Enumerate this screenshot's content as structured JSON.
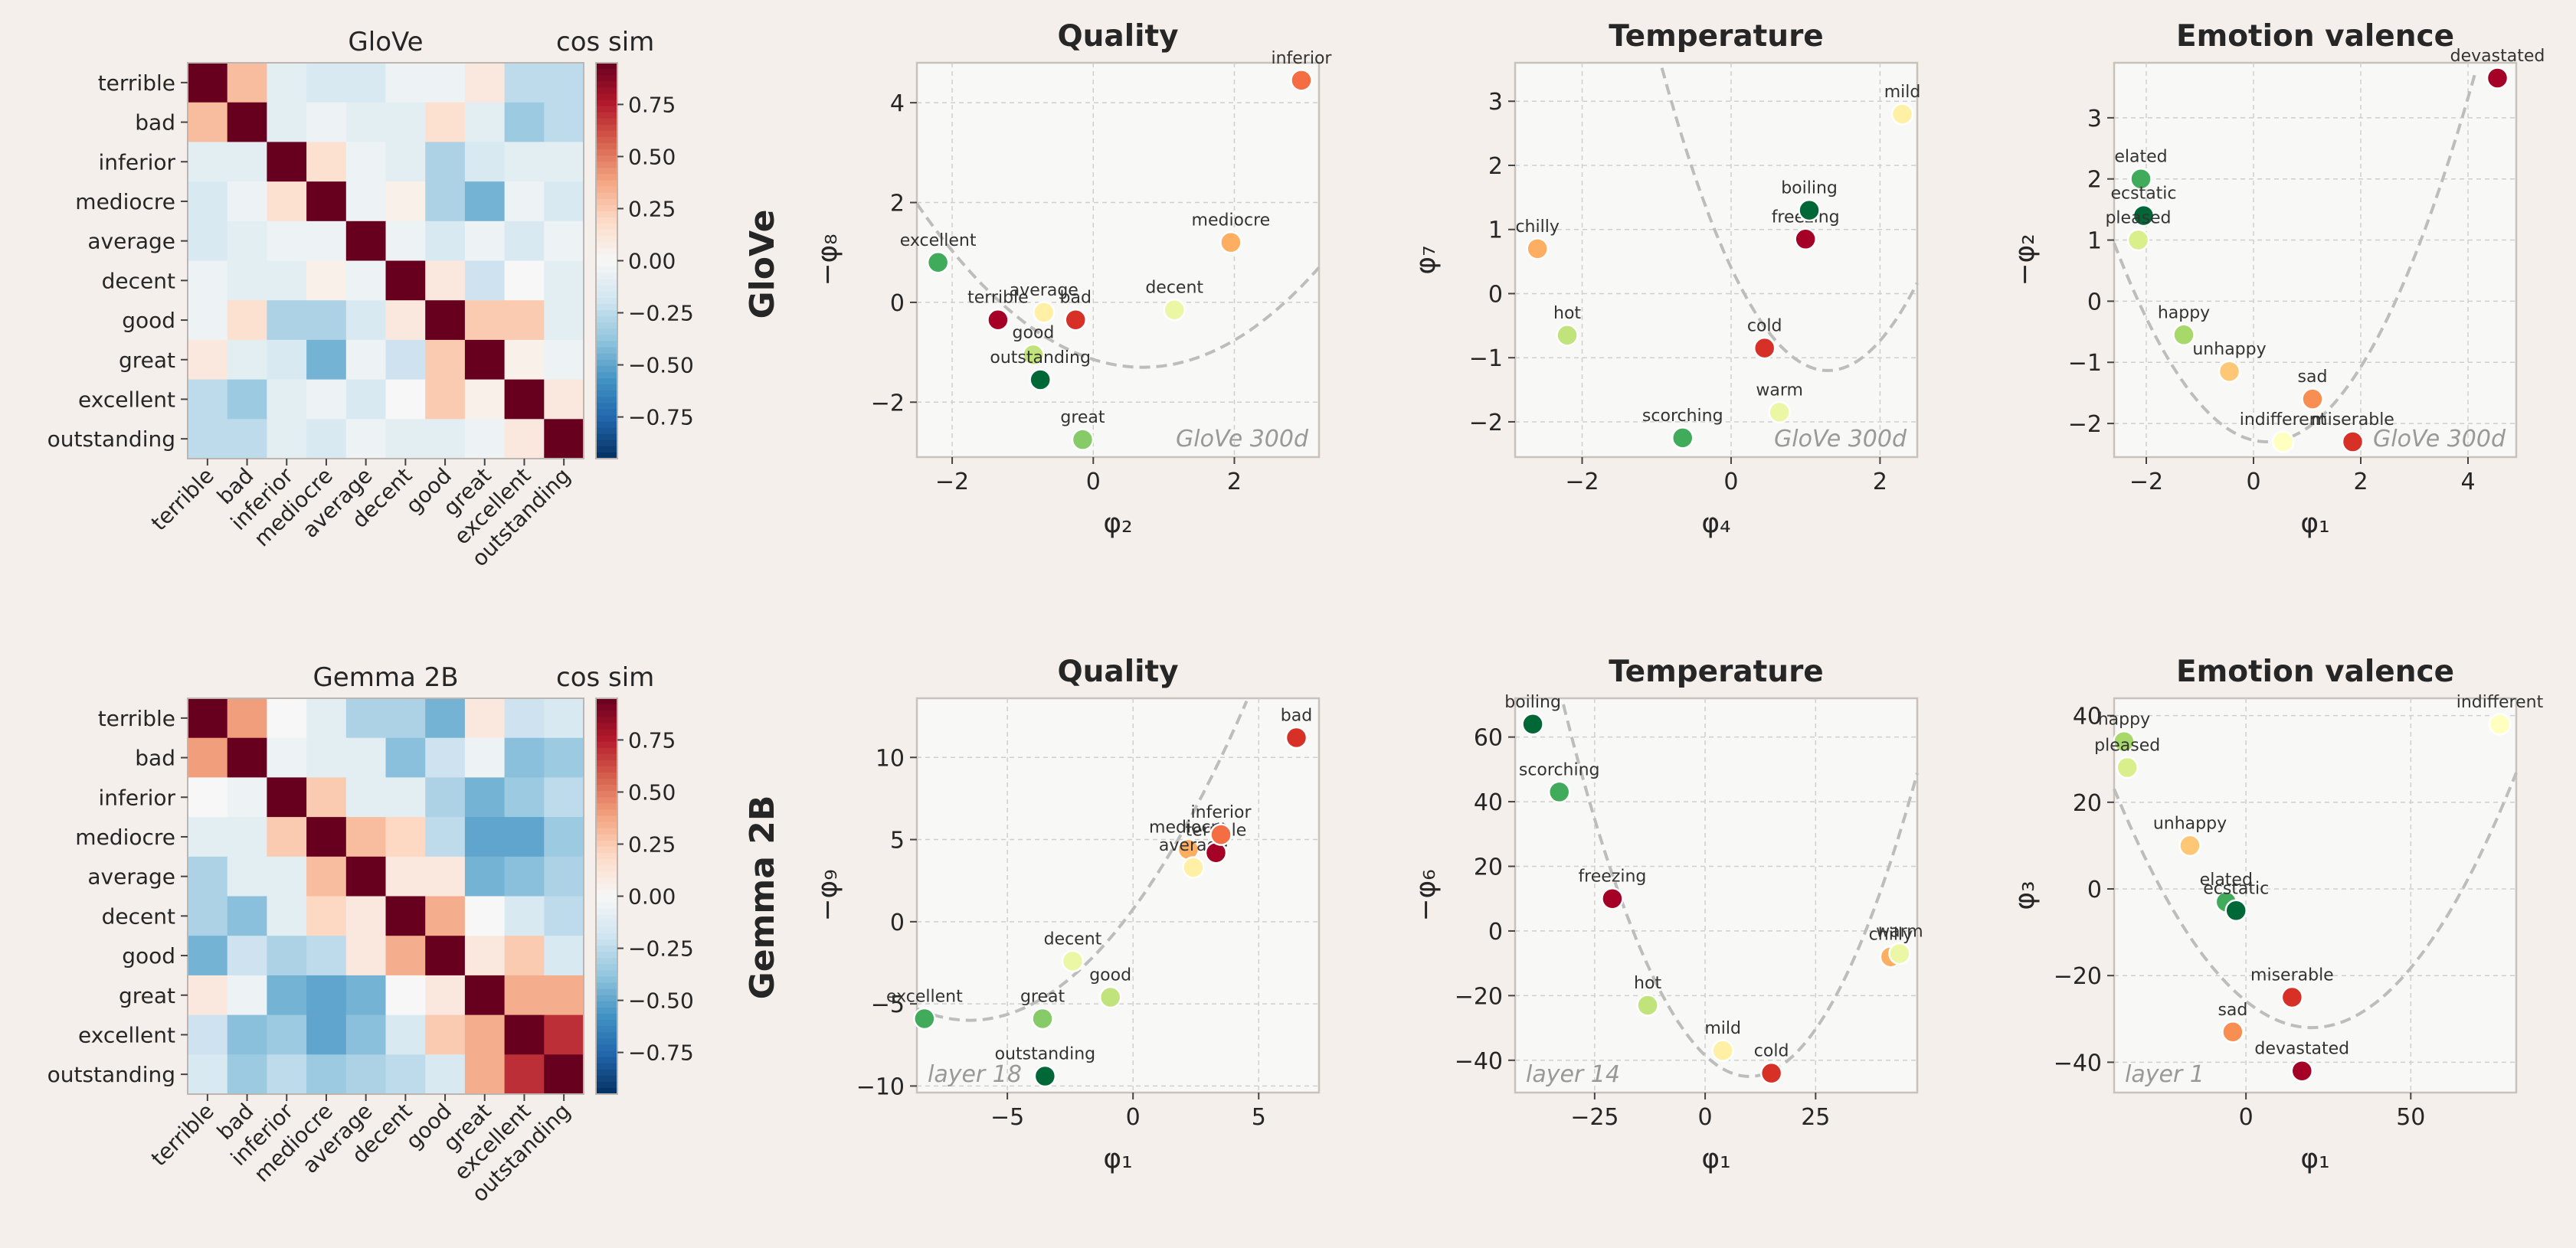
{
  "colorbar": {
    "title": "cos sim",
    "ticks": [
      0.75,
      0.5,
      0.25,
      0.0,
      -0.25,
      -0.5,
      -0.75
    ],
    "tick_labels": [
      "0.75",
      "0.50",
      "0.25",
      "0.00",
      "−0.25",
      "−0.50",
      "−0.75"
    ],
    "range": [
      -0.95,
      0.95
    ]
  },
  "colormaps": {
    "heatmap": "RdBu_r",
    "points": "RdYlGn"
  },
  "rows": [
    {
      "label": "GloVe"
    },
    {
      "label": "Gemma 2B"
    }
  ],
  "chart_data": [
    {
      "type": "heatmap",
      "title": "GloVe",
      "row": 0,
      "labels": [
        "terrible",
        "bad",
        "inferior",
        "mediocre",
        "average",
        "decent",
        "good",
        "great",
        "excellent",
        "outstanding"
      ],
      "matrix": [
        [
          1.0,
          0.3,
          -0.1,
          -0.15,
          -0.15,
          -0.05,
          -0.05,
          0.1,
          -0.25,
          -0.25
        ],
        [
          0.3,
          1.0,
          -0.1,
          -0.05,
          -0.1,
          -0.1,
          0.15,
          -0.1,
          -0.35,
          -0.25
        ],
        [
          -0.1,
          -0.1,
          1.0,
          0.15,
          -0.05,
          -0.1,
          -0.3,
          -0.15,
          -0.1,
          -0.1
        ],
        [
          -0.15,
          -0.05,
          0.15,
          1.0,
          -0.05,
          0.05,
          -0.3,
          -0.45,
          -0.05,
          -0.15
        ],
        [
          -0.15,
          -0.1,
          -0.05,
          -0.05,
          1.0,
          -0.05,
          -0.15,
          -0.05,
          -0.15,
          -0.05
        ],
        [
          -0.05,
          -0.1,
          -0.1,
          0.05,
          -0.05,
          1.0,
          0.1,
          -0.2,
          0.0,
          -0.1
        ],
        [
          -0.05,
          0.15,
          -0.3,
          -0.3,
          -0.15,
          0.1,
          1.0,
          0.25,
          0.25,
          -0.1
        ],
        [
          0.1,
          -0.1,
          -0.15,
          -0.45,
          -0.05,
          -0.2,
          0.25,
          1.0,
          0.05,
          -0.05
        ],
        [
          -0.25,
          -0.35,
          -0.1,
          -0.05,
          -0.15,
          0.0,
          0.25,
          0.05,
          1.0,
          0.1
        ],
        [
          -0.25,
          -0.25,
          -0.1,
          -0.15,
          -0.05,
          -0.1,
          -0.1,
          -0.05,
          0.1,
          1.0
        ]
      ]
    },
    {
      "type": "scatter",
      "title": "Quality",
      "row": 0,
      "xlabel": "φ₂",
      "ylabel": "−φ₈",
      "xlim": [
        -2.5,
        3.2
      ],
      "ylim": [
        -3.1,
        4.8
      ],
      "xticks": [
        -2,
        0,
        2
      ],
      "yticks": [
        -2,
        0,
        2,
        4
      ],
      "annotation": "GloVe 300d",
      "curve": [
        0.32,
        0.7,
        -1.3
      ],
      "points": [
        {
          "label": "excellent",
          "x": -2.2,
          "y": 0.8,
          "c": 0.85
        },
        {
          "label": "terrible",
          "x": -1.35,
          "y": -0.35,
          "c": 0.0
        },
        {
          "label": "average",
          "x": -0.7,
          "y": -0.2,
          "c": 0.45
        },
        {
          "label": "bad",
          "x": -0.25,
          "y": -0.35,
          "c": 0.1
        },
        {
          "label": "good",
          "x": -0.85,
          "y": -1.05,
          "c": 0.65
        },
        {
          "label": "outstanding",
          "x": -0.75,
          "y": -1.55,
          "c": 1.0
        },
        {
          "label": "great",
          "x": -0.15,
          "y": -2.75,
          "c": 0.75
        },
        {
          "label": "decent",
          "x": 1.15,
          "y": -0.15,
          "c": 0.55
        },
        {
          "label": "mediocre",
          "x": 1.95,
          "y": 1.2,
          "c": 0.3
        },
        {
          "label": "inferior",
          "x": 2.95,
          "y": 4.45,
          "c": 0.2
        }
      ]
    },
    {
      "type": "scatter",
      "title": "Temperature",
      "row": 0,
      "xlabel": "φ₄",
      "ylabel": "φ₇",
      "xlim": [
        -2.9,
        2.5
      ],
      "ylim": [
        -2.55,
        3.6
      ],
      "xticks": [
        -2,
        0,
        2
      ],
      "yticks": [
        -2,
        -1,
        0,
        1,
        2,
        3
      ],
      "annotation": "GloVe 300d",
      "curve": [
        0.95,
        1.3,
        -1.2
      ],
      "points": [
        {
          "label": "chilly",
          "x": -2.6,
          "y": 0.7,
          "c": 0.3
        },
        {
          "label": "hot",
          "x": -2.2,
          "y": -0.65,
          "c": 0.65
        },
        {
          "label": "scorching",
          "x": -0.65,
          "y": -2.25,
          "c": 0.85
        },
        {
          "label": "cold",
          "x": 0.45,
          "y": -0.85,
          "c": 0.1
        },
        {
          "label": "warm",
          "x": 0.65,
          "y": -1.85,
          "c": 0.55
        },
        {
          "label": "freezing",
          "x": 1.0,
          "y": 0.85,
          "c": 0.0
        },
        {
          "label": "boiling",
          "x": 1.05,
          "y": 1.3,
          "c": 1.0
        },
        {
          "label": "mild",
          "x": 2.3,
          "y": 2.8,
          "c": 0.45
        }
      ]
    },
    {
      "type": "scatter",
      "title": "Emotion valence",
      "row": 0,
      "xlabel": "φ₁",
      "ylabel": "−φ₂",
      "xlim": [
        -2.6,
        4.9
      ],
      "ylim": [
        -2.55,
        3.9
      ],
      "xticks": [
        -2,
        0,
        2,
        4
      ],
      "yticks": [
        -2,
        -1,
        0,
        1,
        2,
        3
      ],
      "annotation": "GloVe 300d",
      "curve": [
        0.4,
        0.25,
        -2.3
      ],
      "points": [
        {
          "label": "elated",
          "x": -2.1,
          "y": 2.0,
          "c": 0.85
        },
        {
          "label": "ecstatic",
          "x": -2.05,
          "y": 1.4,
          "c": 1.0
        },
        {
          "label": "pleased",
          "x": -2.15,
          "y": 1.0,
          "c": 0.6
        },
        {
          "label": "happy",
          "x": -1.3,
          "y": -0.55,
          "c": 0.7
        },
        {
          "label": "unhappy",
          "x": -0.45,
          "y": -1.15,
          "c": 0.35
        },
        {
          "label": "sad",
          "x": 1.1,
          "y": -1.6,
          "c": 0.25
        },
        {
          "label": "indifferent",
          "x": 0.55,
          "y": -2.3,
          "c": 0.5
        },
        {
          "label": "miserable",
          "x": 1.85,
          "y": -2.3,
          "c": 0.1
        },
        {
          "label": "devastated",
          "x": 4.55,
          "y": 3.65,
          "c": 0.0
        }
      ]
    },
    {
      "type": "heatmap",
      "title": "Gemma 2B",
      "row": 1,
      "labels": [
        "terrible",
        "bad",
        "inferior",
        "mediocre",
        "average",
        "decent",
        "good",
        "great",
        "excellent",
        "outstanding"
      ],
      "matrix": [
        [
          1.0,
          0.4,
          0.0,
          -0.1,
          -0.3,
          -0.3,
          -0.45,
          0.1,
          -0.2,
          -0.15
        ],
        [
          0.4,
          1.0,
          -0.05,
          -0.1,
          -0.1,
          -0.4,
          -0.2,
          -0.05,
          -0.4,
          -0.35
        ],
        [
          0.0,
          -0.05,
          1.0,
          0.25,
          -0.1,
          -0.1,
          -0.3,
          -0.45,
          -0.35,
          -0.25
        ],
        [
          -0.1,
          -0.1,
          0.25,
          1.0,
          0.3,
          0.2,
          -0.25,
          -0.5,
          -0.5,
          -0.35
        ],
        [
          -0.3,
          -0.1,
          -0.1,
          0.3,
          1.0,
          0.1,
          0.1,
          -0.45,
          -0.4,
          -0.3
        ],
        [
          -0.3,
          -0.4,
          -0.1,
          0.2,
          0.1,
          1.0,
          0.35,
          0.0,
          -0.15,
          -0.25
        ],
        [
          -0.45,
          -0.2,
          -0.3,
          -0.25,
          0.1,
          0.35,
          1.0,
          0.1,
          0.25,
          -0.15
        ],
        [
          0.1,
          -0.05,
          -0.45,
          -0.5,
          -0.45,
          0.0,
          0.1,
          1.0,
          0.35,
          0.35
        ],
        [
          -0.2,
          -0.4,
          -0.35,
          -0.5,
          -0.4,
          -0.15,
          0.25,
          0.35,
          1.0,
          0.7
        ],
        [
          -0.15,
          -0.35,
          -0.25,
          -0.35,
          -0.3,
          -0.25,
          -0.15,
          0.35,
          0.7,
          1.0
        ]
      ]
    },
    {
      "type": "scatter",
      "title": "Quality",
      "row": 1,
      "xlabel": "φ₁",
      "ylabel": "−φ₉",
      "xlim": [
        -8.6,
        7.4
      ],
      "ylim": [
        -10.4,
        13.6
      ],
      "xticks": [
        -5,
        0,
        5
      ],
      "yticks": [
        -10,
        -5,
        0,
        5,
        10
      ],
      "annotation": "layer 18",
      "curve": [
        0.16,
        -6.5,
        -6.0
      ],
      "points": [
        {
          "label": "excellent",
          "x": -8.3,
          "y": -5.9,
          "c": 0.85
        },
        {
          "label": "great",
          "x": -3.6,
          "y": -5.9,
          "c": 0.75
        },
        {
          "label": "outstanding",
          "x": -3.5,
          "y": -9.4,
          "c": 1.0
        },
        {
          "label": "decent",
          "x": -2.4,
          "y": -2.4,
          "c": 0.55
        },
        {
          "label": "good",
          "x": -0.9,
          "y": -4.6,
          "c": 0.65
        },
        {
          "label": "mediocre",
          "x": 2.2,
          "y": 4.4,
          "c": 0.3
        },
        {
          "label": "average",
          "x": 2.4,
          "y": 3.3,
          "c": 0.45
        },
        {
          "label": "terrible",
          "x": 3.3,
          "y": 4.2,
          "c": 0.0
        },
        {
          "label": "inferior",
          "x": 3.5,
          "y": 5.3,
          "c": 0.2
        },
        {
          "label": "bad",
          "x": 6.5,
          "y": 11.2,
          "c": 0.1
        }
      ]
    },
    {
      "type": "scatter",
      "title": "Temperature",
      "row": 1,
      "xlabel": "φ₁",
      "ylabel": "−φ₆",
      "xlim": [
        -43,
        48
      ],
      "ylim": [
        -50,
        72
      ],
      "xticks": [
        -25,
        0,
        25
      ],
      "yticks": [
        -40,
        -20,
        0,
        20,
        40,
        60
      ],
      "annotation": "layer 14",
      "curve": [
        0.065,
        10.0,
        -45.0
      ],
      "points": [
        {
          "label": "boiling",
          "x": -39,
          "y": 64,
          "c": 1.0
        },
        {
          "label": "scorching",
          "x": -33,
          "y": 43,
          "c": 0.85
        },
        {
          "label": "freezing",
          "x": -21,
          "y": 10,
          "c": 0.0
        },
        {
          "label": "hot",
          "x": -13,
          "y": -23,
          "c": 0.65
        },
        {
          "label": "mild",
          "x": 4,
          "y": -37,
          "c": 0.45
        },
        {
          "label": "cold",
          "x": 15,
          "y": -44,
          "c": 0.1
        },
        {
          "label": "chilly",
          "x": 42,
          "y": -8,
          "c": 0.3
        },
        {
          "label": "warm",
          "x": 44,
          "y": -7,
          "c": 0.55
        }
      ]
    },
    {
      "type": "scatter",
      "title": "Emotion valence",
      "row": 1,
      "xlabel": "φ₁",
      "ylabel": "φ₃",
      "xlim": [
        -40,
        82
      ],
      "ylim": [
        -47,
        44
      ],
      "xticks": [
        0,
        50
      ],
      "yticks": [
        -40,
        -20,
        0,
        20,
        40
      ],
      "annotation": "layer 1",
      "curve": [
        0.0153,
        20.0,
        -32.0
      ],
      "points": [
        {
          "label": "happy",
          "x": -37,
          "y": 34,
          "c": 0.7
        },
        {
          "label": "pleased",
          "x": -36,
          "y": 28,
          "c": 0.6
        },
        {
          "label": "unhappy",
          "x": -17,
          "y": 10,
          "c": 0.35
        },
        {
          "label": "elated",
          "x": -6,
          "y": -3,
          "c": 0.85
        },
        {
          "label": "ecstatic",
          "x": -3,
          "y": -5,
          "c": 1.0
        },
        {
          "label": "miserable",
          "x": 14,
          "y": -25,
          "c": 0.1
        },
        {
          "label": "sad",
          "x": -4,
          "y": -33,
          "c": 0.25
        },
        {
          "label": "devastated",
          "x": 17,
          "y": -42,
          "c": 0.0
        },
        {
          "label": "indifferent",
          "x": 77,
          "y": 38,
          "c": 0.5
        }
      ]
    }
  ]
}
